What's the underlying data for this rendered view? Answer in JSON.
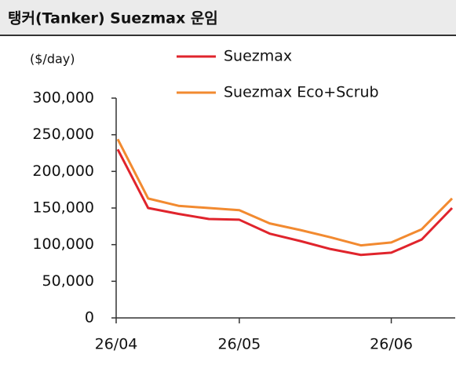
{
  "chart_data": {
    "type": "line",
    "title": "탱커(Tanker) Suezmax 운임",
    "y_label": "($/day)",
    "categories": [
      "26/04",
      null,
      null,
      null,
      "26/05",
      null,
      null,
      null,
      null,
      "26/06",
      null,
      null
    ],
    "series": [
      {
        "name": "Suezmax",
        "color": "#e0242c",
        "values": [
          230000,
          150000,
          142000,
          135000,
          134000,
          115000,
          105000,
          94000,
          86000,
          89000,
          107000,
          150000
        ]
      },
      {
        "name": "Suezmax Eco+Scrub",
        "color": "#f28a30",
        "values": [
          244000,
          163000,
          153000,
          150000,
          147000,
          129000,
          120000,
          110000,
          99000,
          103000,
          121000,
          163000
        ]
      }
    ],
    "ylim": [
      0,
      300000
    ],
    "yticks": [
      0,
      {
        "value": 50000,
        "label": "50,000"
      },
      {
        "value": 100000,
        "label": "100,000"
      },
      {
        "value": 150000,
        "label": "150,000"
      },
      {
        "value": 200000,
        "label": "200,000"
      },
      {
        "value": 250000,
        "label": "250,000"
      },
      {
        "value": 300000,
        "label": "300,000"
      }
    ]
  }
}
